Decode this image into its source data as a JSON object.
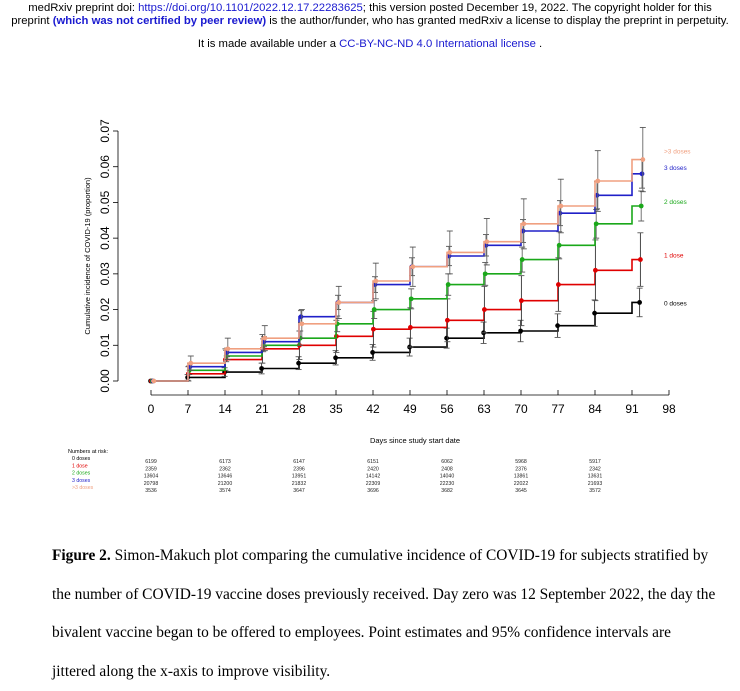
{
  "header": {
    "line1": "medRxiv preprint doi: ",
    "doi": "https://doi.org/10.1101/2022.12.17.22283625",
    "line1_rest": "; this version posted December 19, 2022. The copyright holder for this",
    "line2_start": "preprint ",
    "peer": "(which was not certified by peer review)",
    "line2_rest": " is the author/funder, who has granted medRxiv a license to display the preprint in perpetuity.",
    "line3": "It is made available under a ",
    "license": "CC-BY-NC-ND 4.0 International license",
    "line3_end": " ."
  },
  "chart_data": {
    "type": "step",
    "y_label": "Cumulative incidence of COVID-19 (proportion)",
    "x_label": "Days since study start date",
    "x": [
      0,
      7,
      14,
      21,
      28,
      35,
      42,
      49,
      56,
      63,
      70,
      77,
      84,
      91
    ],
    "xlim": [
      0,
      98
    ],
    "xticks": [
      0,
      7,
      14,
      21,
      28,
      35,
      42,
      49,
      56,
      63,
      70,
      77,
      84,
      91,
      98
    ],
    "ylim": [
      0,
      0.07
    ],
    "yticks": [
      {
        "value": 0,
        "label": "0.00"
      },
      {
        "value": 0.01,
        "label": "0.01"
      },
      {
        "value": 0.02,
        "label": "0.02"
      },
      {
        "value": 0.03,
        "label": "0.03"
      },
      {
        "value": 0.04,
        "label": "0.04"
      },
      {
        "value": 0.05,
        "label": "0.05"
      },
      {
        "value": 0.06,
        "label": "0.06"
      },
      {
        "value": 0.07,
        "label": "0.07"
      }
    ],
    "series": [
      {
        "name": "0 doses",
        "color": "#000000",
        "values": [
          0,
          0.001,
          0.0025,
          0.0035,
          0.005,
          0.0065,
          0.008,
          0.0095,
          0.012,
          0.0135,
          0.014,
          0.0155,
          0.019,
          0.022
        ],
        "errors": [
          0,
          0.0008,
          0.0012,
          0.0015,
          0.0018,
          0.002,
          0.0022,
          0.0025,
          0.0028,
          0.003,
          0.003,
          0.0033,
          0.0037,
          0.004
        ]
      },
      {
        "name": "1 dose",
        "color": "#e00000",
        "values": [
          0,
          0.002,
          0.006,
          0.009,
          0.01,
          0.0125,
          0.0145,
          0.015,
          0.017,
          0.02,
          0.0225,
          0.027,
          0.031,
          0.034
        ],
        "errors": [
          0,
          0.002,
          0.003,
          0.004,
          0.004,
          0.0045,
          0.005,
          0.0055,
          0.006,
          0.0065,
          0.007,
          0.0075,
          0.0085,
          0.0075
        ]
      },
      {
        "name": "2 doses",
        "color": "#1aa81a",
        "values": [
          0,
          0.003,
          0.007,
          0.01,
          0.012,
          0.016,
          0.02,
          0.023,
          0.027,
          0.03,
          0.034,
          0.038,
          0.044,
          0.049
        ],
        "errors": [
          0,
          0.0012,
          0.0016,
          0.0018,
          0.002,
          0.0022,
          0.0025,
          0.0028,
          0.003,
          0.0032,
          0.0035,
          0.0038,
          0.004,
          0.0042
        ]
      },
      {
        "name": "3 doses",
        "color": "#2020c8",
        "values": [
          0,
          0.004,
          0.008,
          0.011,
          0.018,
          0.022,
          0.027,
          0.032,
          0.035,
          0.038,
          0.042,
          0.047,
          0.052,
          0.058
        ],
        "errors": [
          0,
          0.001,
          0.0012,
          0.0014,
          0.0017,
          0.002,
          0.0022,
          0.0025,
          0.0027,
          0.003,
          0.0032,
          0.0035,
          0.0038,
          0.004
        ]
      },
      {
        "name": ">3 doses",
        "color": "#f0a080",
        "values": [
          0,
          0.005,
          0.009,
          0.012,
          0.016,
          0.022,
          0.028,
          0.032,
          0.036,
          0.039,
          0.044,
          0.049,
          0.056,
          0.062
        ],
        "errors": [
          0,
          0.002,
          0.003,
          0.0035,
          0.004,
          0.0045,
          0.005,
          0.0055,
          0.006,
          0.0065,
          0.007,
          0.0075,
          0.0085,
          0.009
        ]
      }
    ],
    "risk_table": {
      "title": "Numbers at risk:",
      "days": [
        0,
        14,
        28,
        42,
        56,
        70,
        84
      ],
      "rows": [
        [
          6199,
          6173,
          6147,
          6151,
          6062,
          5968,
          5917
        ],
        [
          2359,
          2362,
          2396,
          2420,
          2408,
          2376,
          2342
        ],
        [
          13604,
          13646,
          13951,
          14142,
          14040,
          13861,
          13631
        ],
        [
          20798,
          21200,
          21832,
          22309,
          22230,
          22022,
          21693
        ],
        [
          3536,
          3574,
          3647,
          3696,
          3682,
          3645,
          3572
        ]
      ]
    }
  },
  "caption": {
    "label": "Figure 2.",
    "text": " Simon-Makuch plot comparing the cumulative incidence of COVID-19 for subjects stratified by the number of COVID-19 vaccine doses previously received. Day zero was 12 September 2022, the day the bivalent vaccine began to be offered to employees. Point estimates and 95% confidence intervals are jittered along the x-axis to improve visibility."
  }
}
